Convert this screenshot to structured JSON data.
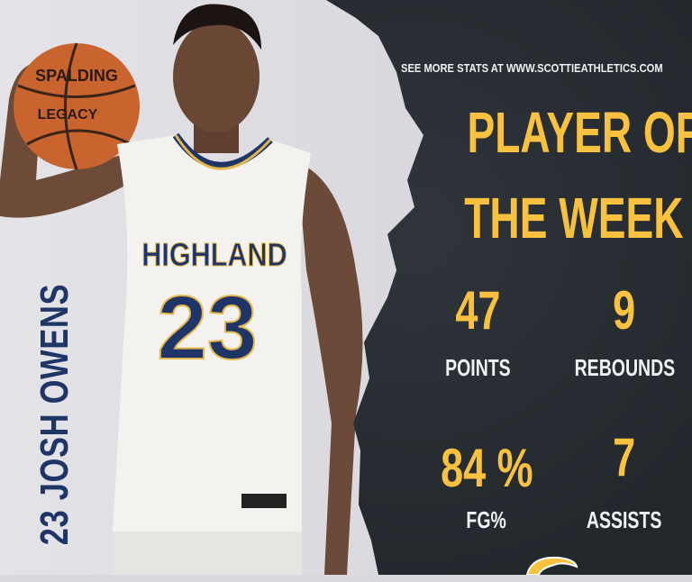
{
  "header": {
    "url_text": "SEE MORE STATS AT WWW.SCOTTIEATHLETICS.COM"
  },
  "title": {
    "line1": "PLAYER OF",
    "line2": "THE WEEK"
  },
  "player": {
    "name": "23 JOSH OWENS",
    "jersey_text": "HIGHLAND",
    "jersey_number": "23",
    "ball_brand": "SPALDING",
    "ball_model": "LEGACY"
  },
  "stats": [
    {
      "value": "47",
      "label": "POINTS"
    },
    {
      "value": "9",
      "label": "REBOUNDS"
    },
    {
      "value": "84 %",
      "label": "FG%"
    },
    {
      "value": "7",
      "label": "ASSISTS"
    }
  ],
  "colors": {
    "accent": "#f8c13f",
    "navy": "#1f3568",
    "panel": "#262b30"
  },
  "logo": {
    "icon": "scottie-logo-icon"
  }
}
